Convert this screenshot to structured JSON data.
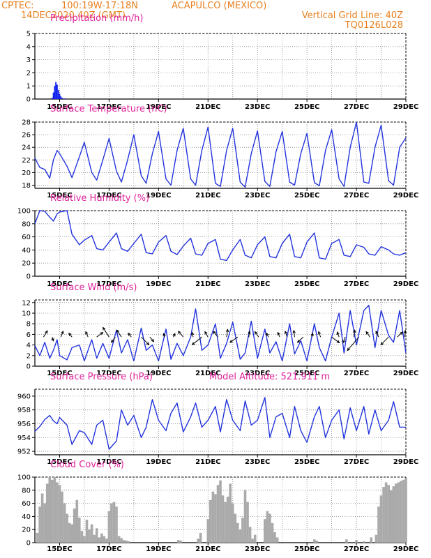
{
  "header": {
    "source": "CPTEC:",
    "coords": "100:19W-17:18N",
    "location": "ACAPULCO (MEXICO)",
    "init_time": "14DEC2020 40Z (GMT)",
    "grid_note": "Vertical Grid Line: 40Z",
    "code": "TQ0126L028"
  },
  "x_axis": {
    "ticks": [
      "15DEC",
      "17DEC",
      "19DEC",
      "21DEC",
      "23DEC",
      "25DEC",
      "27DEC",
      "29DEC"
    ],
    "range_days": [
      14.0,
      29.0
    ]
  },
  "colors": {
    "line": "#2233dd",
    "bar_precip": "#1122ee",
    "bar_cloud": "#aaaaaa",
    "title": "#e0209a",
    "header": "#e8801f"
  },
  "chart_data": [
    {
      "id": "precipitation",
      "type": "bar",
      "title": "Precipitation (mm/h)",
      "ylim": [
        0,
        5
      ],
      "yticks": [
        "0",
        "1",
        "2",
        "3",
        "4",
        "5"
      ],
      "x": [
        14.7,
        14.75,
        14.8,
        14.85,
        14.9,
        14.95,
        15.0,
        15.05,
        15.1,
        15.2
      ],
      "values": [
        0.1,
        0.5,
        1.0,
        1.3,
        1.1,
        0.7,
        0.4,
        0.2,
        0.1,
        0.05
      ]
    },
    {
      "id": "temperature",
      "type": "line",
      "title": "Surface Temperature (nC)",
      "ylim": [
        17.5,
        28
      ],
      "yticks": [
        "18",
        "20",
        "22",
        "24",
        "26",
        "28"
      ],
      "x": [
        14.0,
        14.2,
        14.4,
        14.6,
        14.75,
        14.9,
        15.0,
        15.3,
        15.5,
        15.8,
        16.0,
        16.3,
        16.5,
        16.75,
        17.0,
        17.3,
        17.5,
        17.75,
        18.0,
        18.3,
        18.5,
        18.75,
        19.0,
        19.3,
        19.5,
        19.75,
        20.0,
        20.3,
        20.5,
        20.75,
        21.0,
        21.3,
        21.5,
        21.75,
        22.0,
        22.3,
        22.5,
        22.75,
        23.0,
        23.3,
        23.5,
        23.75,
        24.0,
        24.3,
        24.5,
        24.75,
        25.0,
        25.3,
        25.5,
        25.75,
        26.0,
        26.3,
        26.5,
        26.75,
        27.0,
        27.3,
        27.5,
        27.75,
        28.0,
        28.3,
        28.5,
        28.75,
        29.0
      ],
      "values": [
        22.3,
        20.8,
        20.5,
        19.1,
        22.0,
        23.5,
        23.0,
        21.0,
        19.2,
        22.5,
        24.8,
        20.0,
        18.8,
        22.0,
        25.4,
        20.2,
        18.5,
        22.0,
        26.0,
        19.5,
        18.3,
        23.0,
        26.5,
        19.0,
        18.0,
        23.5,
        27.0,
        19.0,
        18.0,
        23.5,
        27.2,
        18.3,
        17.8,
        23.5,
        27.0,
        18.5,
        17.7,
        23.0,
        26.6,
        18.6,
        17.8,
        23.3,
        26.5,
        18.5,
        18.0,
        23.0,
        26.2,
        18.4,
        17.9,
        23.5,
        26.8,
        19.0,
        17.8,
        24.0,
        28.0,
        18.5,
        18.3,
        24.0,
        27.5,
        18.7,
        18.0,
        24.0,
        25.5
      ]
    },
    {
      "id": "humidity",
      "type": "line",
      "title": "Relative Humidity (%)",
      "ylim": [
        0,
        100
      ],
      "yticks": [
        "0",
        "20",
        "40",
        "60",
        "80",
        "100"
      ],
      "x": [
        14.0,
        14.2,
        14.4,
        14.6,
        14.75,
        14.9,
        15.0,
        15.3,
        15.5,
        15.8,
        16.0,
        16.3,
        16.5,
        16.75,
        17.0,
        17.3,
        17.5,
        17.75,
        18.0,
        18.3,
        18.5,
        18.75,
        19.0,
        19.3,
        19.5,
        19.75,
        20.0,
        20.3,
        20.5,
        20.75,
        21.0,
        21.3,
        21.5,
        21.75,
        22.0,
        22.3,
        22.5,
        22.75,
        23.0,
        23.3,
        23.5,
        23.75,
        24.0,
        24.3,
        24.5,
        24.75,
        25.0,
        25.3,
        25.5,
        25.75,
        26.0,
        26.3,
        26.5,
        26.75,
        27.0,
        27.3,
        27.5,
        27.75,
        28.0,
        28.3,
        28.5,
        28.75,
        29.0
      ],
      "values": [
        80,
        100,
        99,
        90,
        84,
        95,
        98,
        100,
        64,
        48,
        55,
        62,
        42,
        40,
        52,
        66,
        42,
        38,
        50,
        64,
        36,
        34,
        52,
        62,
        38,
        33,
        46,
        58,
        34,
        32,
        50,
        56,
        26,
        24,
        40,
        56,
        32,
        28,
        48,
        60,
        30,
        28,
        50,
        64,
        30,
        28,
        52,
        66,
        28,
        26,
        50,
        56,
        32,
        30,
        48,
        44,
        34,
        32,
        45,
        40,
        34,
        32,
        36
      ]
    },
    {
      "id": "wind",
      "type": "line",
      "title": "Surface Wind (m/s)",
      "ylim": [
        0,
        12.5
      ],
      "yticks": [
        "0",
        "2",
        "4",
        "6",
        "8",
        "10",
        "12"
      ],
      "x": [
        14.0,
        14.2,
        14.4,
        14.6,
        14.75,
        14.9,
        15.0,
        15.3,
        15.5,
        15.8,
        16.0,
        16.3,
        16.5,
        16.75,
        17.0,
        17.3,
        17.5,
        17.75,
        18.0,
        18.3,
        18.5,
        18.75,
        19.0,
        19.3,
        19.5,
        19.75,
        20.0,
        20.3,
        20.5,
        20.75,
        21.0,
        21.3,
        21.5,
        21.75,
        22.0,
        22.3,
        22.5,
        22.75,
        23.0,
        23.3,
        23.5,
        23.75,
        24.0,
        24.3,
        24.5,
        24.75,
        25.0,
        25.3,
        25.5,
        25.75,
        26.0,
        26.3,
        26.5,
        26.75,
        27.0,
        27.3,
        27.5,
        27.75,
        28.0,
        28.3,
        28.5,
        28.75,
        29.0
      ],
      "values": [
        3.9,
        2.0,
        4.5,
        1.5,
        3.0,
        5.0,
        2.0,
        1.2,
        3.5,
        4.0,
        1.0,
        5.0,
        1.5,
        4.3,
        1.5,
        6.8,
        2.5,
        5.0,
        1.0,
        7.2,
        3.0,
        4.0,
        1.0,
        7.0,
        1.3,
        4.3,
        2.0,
        5.5,
        10.8,
        3.0,
        4.0,
        8.0,
        1.5,
        4.3,
        8.3,
        1.3,
        2.5,
        8.5,
        1.5,
        7.0,
        2.5,
        4.6,
        1.0,
        8.0,
        2.3,
        4.8,
        1.0,
        8.0,
        3.5,
        1.0,
        5.5,
        10.0,
        2.5,
        10.5,
        4.0,
        10.5,
        11.5,
        3.5,
        10.5,
        5.8,
        4.5,
        10.5,
        2.5
      ]
    },
    {
      "id": "pressure",
      "type": "line",
      "title": "Surface Pressure (hPa)",
      "annotation": "Model Altitude: 521.911 m",
      "ylim": [
        951.5,
        961
      ],
      "yticks": [
        "952",
        "954",
        "956",
        "958",
        "960"
      ],
      "x": [
        14.0,
        14.2,
        14.4,
        14.6,
        14.75,
        14.9,
        15.0,
        15.3,
        15.5,
        15.8,
        16.0,
        16.3,
        16.5,
        16.75,
        17.0,
        17.3,
        17.5,
        17.75,
        18.0,
        18.3,
        18.5,
        18.75,
        19.0,
        19.3,
        19.5,
        19.75,
        20.0,
        20.3,
        20.5,
        20.75,
        21.0,
        21.3,
        21.5,
        21.75,
        22.0,
        22.3,
        22.5,
        22.75,
        23.0,
        23.3,
        23.5,
        23.75,
        24.0,
        24.3,
        24.5,
        24.75,
        25.0,
        25.3,
        25.5,
        25.75,
        26.0,
        26.3,
        26.5,
        26.75,
        27.0,
        27.3,
        27.5,
        27.75,
        28.0,
        28.3,
        28.5,
        28.75,
        29.0
      ],
      "values": [
        954.9,
        955.6,
        956.6,
        957.2,
        956.4,
        956.0,
        956.9,
        955.8,
        953.0,
        955.0,
        954.7,
        953.0,
        955.8,
        956.5,
        952.3,
        953.5,
        958.0,
        955.8,
        957.2,
        954.0,
        955.5,
        959.5,
        956.5,
        955.0,
        957.5,
        959.0,
        954.8,
        957.0,
        959.0,
        955.5,
        956.5,
        958.5,
        954.8,
        959.5,
        956.5,
        955.0,
        959.3,
        955.8,
        956.5,
        959.8,
        954.0,
        957.0,
        957.5,
        954.0,
        958.5,
        955.0,
        953.3,
        957.0,
        958.5,
        954.0,
        956.5,
        958.0,
        953.8,
        958.3,
        955.0,
        958.5,
        954.5,
        958.0,
        955.0,
        956.5,
        959.2,
        955.5,
        955.5
      ]
    },
    {
      "id": "cloud",
      "type": "bar",
      "title": "Cloud Cover (%)",
      "ylim": [
        0,
        100
      ],
      "yticks": [
        "0",
        "20",
        "40",
        "60",
        "80",
        "100"
      ],
      "x": [
        14.1,
        14.2,
        14.3,
        14.4,
        14.5,
        14.6,
        14.7,
        14.8,
        14.9,
        15.0,
        15.1,
        15.2,
        15.3,
        15.4,
        15.5,
        15.6,
        15.7,
        15.8,
        15.9,
        16.0,
        16.1,
        16.2,
        16.3,
        16.4,
        16.5,
        16.6,
        16.7,
        16.8,
        16.9,
        17.0,
        17.1,
        17.2,
        17.3,
        17.4,
        17.5,
        17.6,
        17.7,
        17.8,
        19.8,
        19.9,
        20.6,
        20.7,
        21.0,
        21.1,
        21.2,
        21.3,
        21.4,
        21.5,
        21.6,
        21.7,
        21.8,
        21.9,
        22.0,
        22.1,
        22.2,
        22.3,
        22.4,
        22.5,
        22.6,
        22.7,
        22.8,
        22.9,
        23.3,
        23.4,
        23.5,
        23.6,
        23.7,
        23.8,
        25.3,
        25.4,
        26.6,
        27.0,
        27.3,
        27.6,
        27.8,
        27.9,
        28.0,
        28.1,
        28.2,
        28.3,
        28.4,
        28.5,
        28.6,
        28.7,
        28.8,
        28.9,
        29.0
      ],
      "values": [
        15,
        55,
        75,
        60,
        90,
        100,
        96,
        100,
        92,
        88,
        78,
        60,
        44,
        30,
        28,
        52,
        65,
        38,
        18,
        10,
        35,
        20,
        28,
        12,
        22,
        8,
        14,
        10,
        6,
        48,
        60,
        62,
        55,
        10,
        7,
        4,
        3,
        2,
        4,
        3,
        6,
        15,
        36,
        65,
        78,
        74,
        88,
        95,
        72,
        62,
        70,
        90,
        60,
        44,
        30,
        20,
        38,
        80,
        62,
        24,
        6,
        12,
        36,
        48,
        44,
        30,
        16,
        8,
        5,
        3,
        5,
        4,
        2,
        8,
        12,
        55,
        72,
        85,
        92,
        88,
        80,
        86,
        90,
        92,
        94,
        96,
        98
      ]
    }
  ],
  "wind_arrows": [
    {
      "x": 14.35,
      "u": 1.0,
      "v": 1.6
    },
    {
      "x": 14.7,
      "u": 0.3,
      "v": -1.0
    },
    {
      "x": 15.05,
      "u": 0.6,
      "v": 1.5
    },
    {
      "x": 15.5,
      "u": -0.8,
      "v": 1.0
    },
    {
      "x": 16.15,
      "u": -0.6,
      "v": 1.4
    },
    {
      "x": 16.5,
      "u": 1.6,
      "v": 1.2
    },
    {
      "x": 17.0,
      "u": -1.6,
      "v": 2.5
    },
    {
      "x": 17.25,
      "u": -1.0,
      "v": -1.4
    },
    {
      "x": 17.5,
      "u": -1.2,
      "v": 1.8
    },
    {
      "x": 17.9,
      "u": -0.8,
      "v": 1.0
    },
    {
      "x": 18.3,
      "u": 2.0,
      "v": -2.0
    },
    {
      "x": 18.65,
      "u": 1.0,
      "v": -1.2
    },
    {
      "x": 19.25,
      "u": -0.3,
      "v": 0.9
    },
    {
      "x": 19.6,
      "u": 0.4,
      "v": 0.9
    },
    {
      "x": 20.0,
      "u": -1.3,
      "v": 1.5
    },
    {
      "x": 20.4,
      "u": -0.3,
      "v": 1.2
    },
    {
      "x": 20.75,
      "u": -2.5,
      "v": -2.0
    },
    {
      "x": 21.0,
      "u": -0.8,
      "v": 1.4
    },
    {
      "x": 21.4,
      "u": -1.2,
      "v": 1.5
    },
    {
      "x": 21.75,
      "u": 0.3,
      "v": 2.0
    },
    {
      "x": 22.2,
      "u": -2.0,
      "v": -1.4
    },
    {
      "x": 22.65,
      "u": 0.2,
      "v": 1.5
    },
    {
      "x": 23.05,
      "u": -1.0,
      "v": 1.4
    },
    {
      "x": 23.45,
      "u": -0.6,
      "v": 1.0
    },
    {
      "x": 23.9,
      "u": -0.5,
      "v": 1.2
    },
    {
      "x": 24.2,
      "u": -0.5,
      "v": 1.5
    },
    {
      "x": 24.5,
      "u": -0.2,
      "v": 1.7
    },
    {
      "x": 24.85,
      "u": -1.5,
      "v": -1.4
    },
    {
      "x": 25.2,
      "u": 0.2,
      "v": 1.0
    },
    {
      "x": 25.55,
      "u": -0.5,
      "v": 1.4
    },
    {
      "x": 26.0,
      "u": 2.0,
      "v": -1.5
    },
    {
      "x": 26.3,
      "u": -0.5,
      "v": 1.3
    },
    {
      "x": 26.55,
      "u": -0.6,
      "v": -1.5
    },
    {
      "x": 26.9,
      "u": 0.2,
      "v": 1.8
    },
    {
      "x": 27.1,
      "u": -3.0,
      "v": -3.5
    },
    {
      "x": 27.55,
      "u": -1.0,
      "v": 1.4
    },
    {
      "x": 27.9,
      "u": -0.7,
      "v": 1.5
    },
    {
      "x": 28.3,
      "u": -2.0,
      "v": -2.0
    },
    {
      "x": 28.65,
      "u": 1.4,
      "v": 1.3
    },
    {
      "x": 28.95,
      "u": 0.2,
      "v": 1.7
    }
  ]
}
